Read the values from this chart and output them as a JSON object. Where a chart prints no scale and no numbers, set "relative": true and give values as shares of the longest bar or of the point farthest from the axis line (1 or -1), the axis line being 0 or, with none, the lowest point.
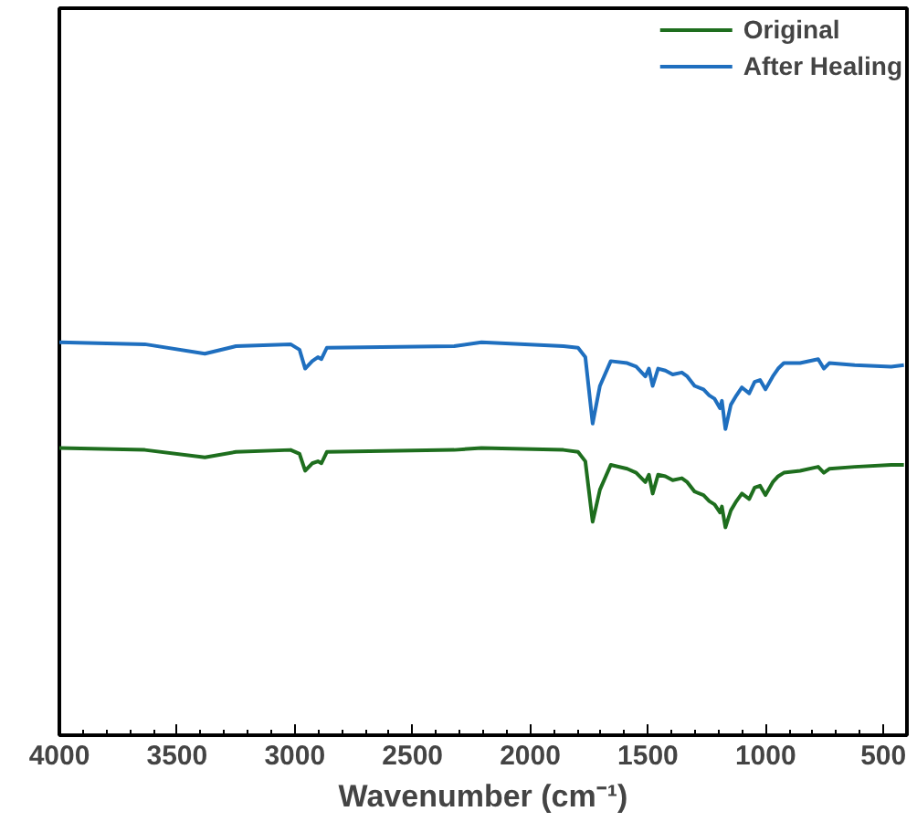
{
  "chart_data": {
    "type": "line",
    "xlabel": "Wavenumber (cm⁻¹)",
    "relative": true,
    "xlim": [
      4000,
      400
    ],
    "xticks": [
      4000,
      3500,
      3000,
      2500,
      2000,
      1500,
      1000,
      500
    ],
    "legend": "top right",
    "grid": false,
    "tick_labels": "x",
    "series": [
      {
        "name": "Original",
        "color": "#1e6e1e",
        "x": [
          4000,
          3637,
          3382,
          3250,
          3018,
          2980,
          2956,
          2926,
          2902,
          2887,
          2864,
          2323,
          2207,
          1859,
          1797,
          1766,
          1735,
          1704,
          1658,
          1588,
          1550,
          1511,
          1496,
          1480,
          1457,
          1426,
          1395,
          1356,
          1333,
          1302,
          1264,
          1240,
          1217,
          1194,
          1186,
          1171,
          1148,
          1124,
          1101,
          1070,
          1047,
          1024,
          1001,
          970,
          947,
          923,
          854,
          777,
          753,
          730,
          622,
          467,
          413
        ],
        "values": [
          0.731,
          0.726,
          0.707,
          0.721,
          0.726,
          0.716,
          0.673,
          0.692,
          0.697,
          0.692,
          0.721,
          0.726,
          0.731,
          0.726,
          0.721,
          0.697,
          0.543,
          0.625,
          0.688,
          0.678,
          0.668,
          0.644,
          0.663,
          0.615,
          0.663,
          0.659,
          0.649,
          0.654,
          0.644,
          0.62,
          0.611,
          0.596,
          0.587,
          0.567,
          0.582,
          0.529,
          0.572,
          0.596,
          0.615,
          0.601,
          0.63,
          0.635,
          0.611,
          0.644,
          0.659,
          0.668,
          0.673,
          0.683,
          0.668,
          0.678,
          0.683,
          0.688,
          0.688
        ]
      },
      {
        "name": "After Healing",
        "color": "#1f6fbf",
        "x": [
          4000,
          3637,
          3382,
          3250,
          3018,
          2980,
          2956,
          2926,
          2902,
          2887,
          2864,
          2323,
          2207,
          1859,
          1797,
          1766,
          1735,
          1704,
          1658,
          1588,
          1550,
          1511,
          1496,
          1480,
          1457,
          1426,
          1395,
          1356,
          1333,
          1302,
          1264,
          1240,
          1217,
          1194,
          1186,
          1171,
          1148,
          1124,
          1101,
          1070,
          1047,
          1024,
          1001,
          970,
          947,
          923,
          854,
          777,
          753,
          730,
          622,
          467,
          413
        ],
        "values": [
          1.0,
          0.995,
          0.971,
          0.99,
          0.995,
          0.981,
          0.933,
          0.952,
          0.962,
          0.957,
          0.986,
          0.99,
          1.0,
          0.99,
          0.986,
          0.962,
          0.793,
          0.889,
          0.952,
          0.947,
          0.938,
          0.913,
          0.933,
          0.889,
          0.933,
          0.928,
          0.918,
          0.923,
          0.913,
          0.889,
          0.88,
          0.865,
          0.856,
          0.832,
          0.851,
          0.779,
          0.841,
          0.865,
          0.885,
          0.87,
          0.899,
          0.904,
          0.88,
          0.913,
          0.933,
          0.947,
          0.947,
          0.957,
          0.933,
          0.947,
          0.942,
          0.938,
          0.942
        ]
      }
    ]
  }
}
